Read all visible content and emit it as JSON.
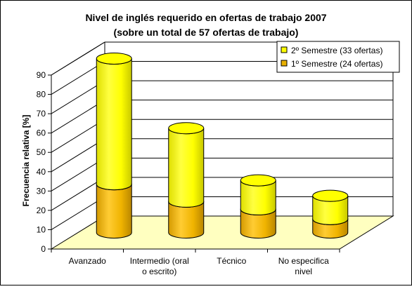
{
  "chart_data": {
    "type": "bar",
    "stacked": true,
    "style": "3d-cylinder",
    "title": "Nivel de inglés requerido en ofertas de trabajo 2007",
    "subtitle": "(sobre un total de 57 ofertas de trabajo)",
    "xlabel": "",
    "ylabel": "Frecuencia relativa [%]",
    "ylim": [
      0,
      90
    ],
    "yticks": [
      0,
      10,
      20,
      30,
      40,
      50,
      60,
      70,
      80,
      90
    ],
    "grid": true,
    "legend_position": "top-right",
    "categories": [
      [
        "Avanzado"
      ],
      [
        "Intermedio (oral",
        "o escrito)"
      ],
      [
        "Técnico"
      ],
      [
        "No especifica",
        "nivel"
      ]
    ],
    "series": [
      {
        "name": "1º Semestre (24 ofertas)",
        "color": "#e8b000",
        "values": [
          25,
          16,
          12,
          7
        ]
      },
      {
        "name": "2º Semestre (33 ofertas)",
        "color": "#ffff00",
        "values": [
          65,
          38,
          15,
          12
        ]
      }
    ],
    "legend_order": [
      1,
      0
    ]
  }
}
